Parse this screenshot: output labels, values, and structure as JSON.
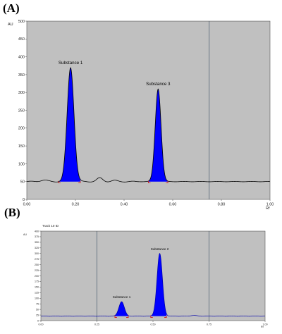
{
  "figure": {
    "panels": [
      {
        "letter": "(A)",
        "yunit": "AU",
        "xunit": "Rf",
        "header": "",
        "xlim": [
          0.0,
          1.0
        ],
        "ylim": [
          0,
          500
        ],
        "xticks": [
          0.0,
          0.2,
          0.4,
          0.6,
          0.8,
          1.0
        ],
        "xtick_labels": [
          "0.00",
          "0.20",
          "0.40",
          "0.60",
          "0.80",
          "1.00"
        ],
        "yticks": [
          0,
          50,
          100,
          150,
          200,
          250,
          300,
          350,
          400,
          450,
          500
        ],
        "ytick_labels": [
          "0",
          "50",
          "100",
          "150",
          "200",
          "250",
          "300",
          "350",
          "400",
          "450",
          "500"
        ],
        "vlines": [
          0.75
        ],
        "background": "#c0c0c0",
        "line_color": "#000000",
        "fill_color": "#0000ff",
        "marker_color": "#cc0000",
        "baseline": 50,
        "bumps": [
          {
            "center": 0.07,
            "height": 4,
            "width": 0.015
          },
          {
            "center": 0.3,
            "height": 10,
            "width": 0.012
          },
          {
            "center": 0.36,
            "height": 3,
            "width": 0.012
          }
        ],
        "peaks": [
          {
            "label": "Substance 1",
            "rf": 0.18,
            "height": 370,
            "width": 0.014,
            "start": 0.13,
            "end": 0.22
          },
          {
            "label": "Substance 3",
            "rf": 0.54,
            "height": 310,
            "width": 0.012,
            "start": 0.5,
            "end": 0.58
          }
        ]
      },
      {
        "letter": "(B)",
        "yunit": "AU",
        "xunit": "Rf",
        "header": "Track 10 ID",
        "xlim": [
          0.0,
          1.0
        ],
        "ylim": [
          0,
          400
        ],
        "xticks": [
          0.0,
          0.25,
          0.5,
          0.75,
          1.0
        ],
        "xtick_labels": [
          "0.00",
          "0.25",
          "0.50",
          "0.75",
          "1.00"
        ],
        "yticks": [
          0,
          25,
          50,
          75,
          100,
          125,
          150,
          175,
          200,
          225,
          250,
          275,
          300,
          325,
          350,
          375,
          400
        ],
        "ytick_labels": [
          "0",
          "25",
          "50",
          "75",
          "100",
          "125",
          "150",
          "175",
          "200",
          "225",
          "250",
          "275",
          "300",
          "325",
          "350",
          "375",
          "400"
        ],
        "vlines": [
          0.25,
          0.75
        ],
        "background": "#c0c0c0",
        "line_color": "#0000aa",
        "fill_color": "#0000ff",
        "marker_color": "#cc0000",
        "baseline": 20,
        "bumps": [
          {
            "center": 0.68,
            "height": 3,
            "width": 0.015
          }
        ],
        "peaks": [
          {
            "label": "Substance 1",
            "rf": 0.36,
            "height": 85,
            "width": 0.012,
            "start": 0.33,
            "end": 0.39
          },
          {
            "label": "Substance 2",
            "rf": 0.53,
            "height": 300,
            "width": 0.012,
            "start": 0.49,
            "end": 0.56
          }
        ]
      }
    ]
  },
  "chart_data": [
    {
      "type": "line",
      "title": "",
      "xlabel": "Rf",
      "ylabel": "AU",
      "xlim": [
        0.0,
        1.0
      ],
      "ylim": [
        0,
        500
      ],
      "series": [
        {
          "x": [
            0.0,
            0.13,
            0.18,
            0.22,
            0.3,
            0.5,
            0.54,
            0.58,
            0.75,
            1.0
          ],
          "values": [
            50,
            52,
            370,
            52,
            60,
            50,
            310,
            50,
            50,
            48
          ]
        }
      ],
      "annotations": [
        {
          "text": "Substance 1",
          "x": 0.18,
          "y": 370
        },
        {
          "text": "Substance 3",
          "x": 0.54,
          "y": 310
        }
      ]
    },
    {
      "type": "line",
      "title": "",
      "xlabel": "Rf",
      "ylabel": "AU",
      "xlim": [
        0.0,
        1.0
      ],
      "ylim": [
        0,
        400
      ],
      "series": [
        {
          "x": [
            0.0,
            0.25,
            0.33,
            0.36,
            0.39,
            0.49,
            0.53,
            0.56,
            0.75,
            1.0
          ],
          "values": [
            20,
            20,
            20,
            85,
            20,
            20,
            300,
            20,
            20,
            20
          ]
        }
      ],
      "annotations": [
        {
          "text": "Substance 1",
          "x": 0.36,
          "y": 85
        },
        {
          "text": "Substance 2",
          "x": 0.53,
          "y": 300
        }
      ]
    }
  ]
}
